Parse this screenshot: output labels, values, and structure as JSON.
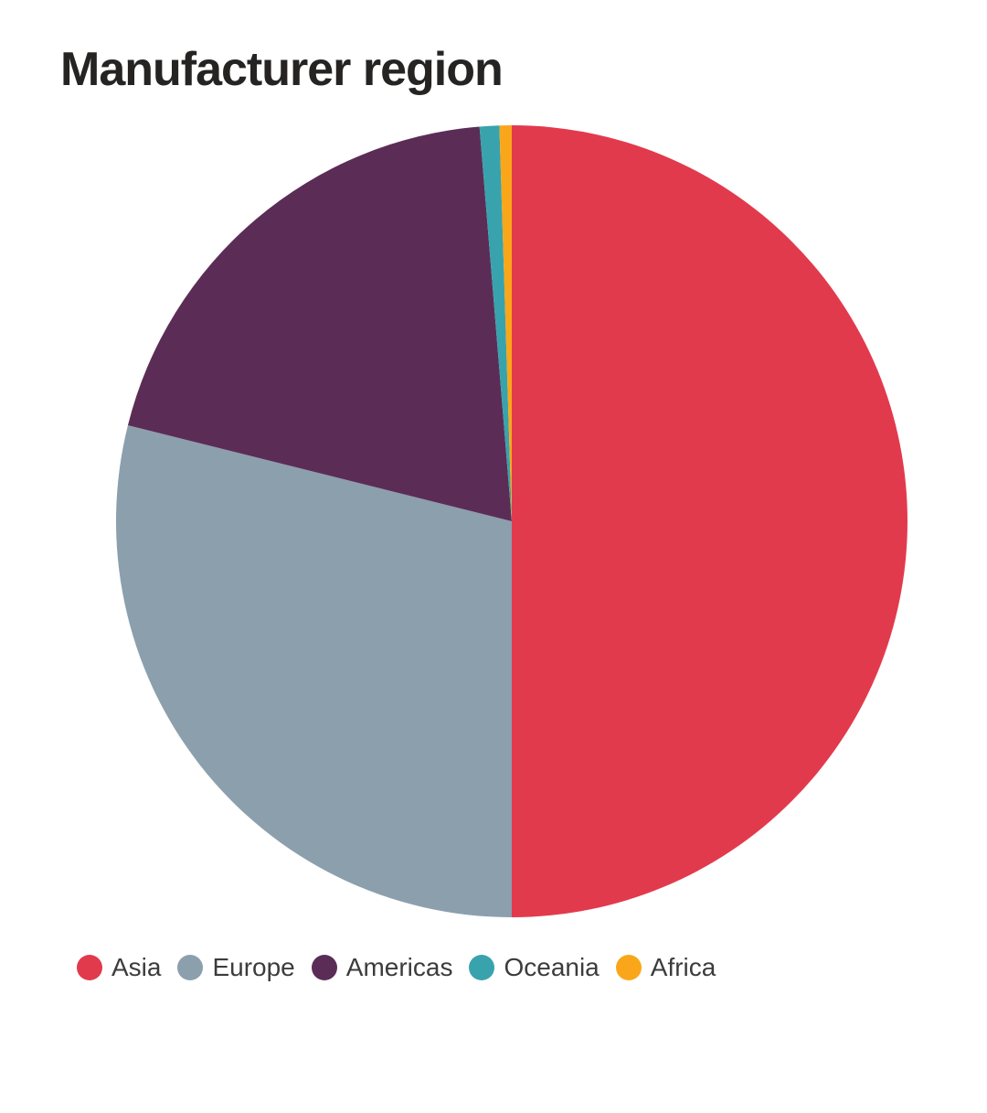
{
  "chart_data": {
    "type": "pie",
    "title": "Manufacturer region",
    "legend_position": "bottom",
    "direction": "clockwise",
    "start_angle_deg": 0,
    "units": "percent_share_estimated_from_angles",
    "series": [
      {
        "label": "Asia",
        "value": 50.0,
        "color": "#E23A4D"
      },
      {
        "label": "Europe",
        "value": 28.9,
        "color": "#8C9FAD"
      },
      {
        "label": "Americas",
        "value": 19.8,
        "color": "#5B2D56"
      },
      {
        "label": "Oceania",
        "value": 0.8,
        "color": "#38A3AC"
      },
      {
        "label": "Africa",
        "value": 0.5,
        "color": "#FAA61A"
      }
    ]
  },
  "colors": {
    "title_text": "#252423",
    "legend_text": "#3c3c3c",
    "background": "#ffffff"
  }
}
